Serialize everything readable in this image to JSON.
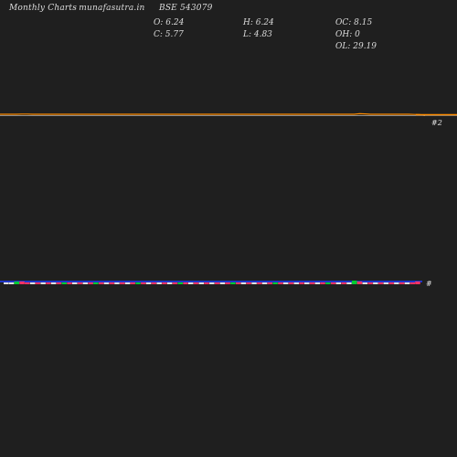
{
  "header": {
    "title": "Monthly Charts",
    "site": "- munafasutra.in",
    "symbol": "BSE 543079"
  },
  "ohlc": {
    "open": "O: 6.24",
    "high": "H: 6.24",
    "oc": "OC: 8.15",
    "close": "C: 5.77",
    "low": "L: 4.83",
    "oh": "OH: 0",
    "ol": "OL: 29.19"
  },
  "colors": {
    "background": "#1f1f1f",
    "price_line": "#ff8c00",
    "volume_axis": "#1e3cff",
    "up": "#00cc33",
    "down": "#ff3366",
    "neutral": "#e0e0e0"
  },
  "chart_data": {
    "type": "line",
    "title": "BSE 543079",
    "price_axis_label": "#2",
    "volume_axis_label": "#",
    "series": [
      {
        "values": [
          6.1,
          6.1,
          6.1,
          6.1,
          6.15,
          6.15,
          6.1,
          6.1,
          6.1,
          6.1,
          6.1,
          6.1,
          6.1,
          6.1,
          6.1,
          6.1,
          6.1,
          6.1,
          6.1,
          6.1,
          6.1,
          6.1,
          6.1,
          6.1,
          6.1,
          6.1,
          6.1,
          6.1,
          6.1,
          6.1,
          6.1,
          6.1,
          6.1,
          6.1,
          6.1,
          6.1,
          6.1,
          6.1,
          6.1,
          6.1,
          6.1,
          6.1,
          6.1,
          6.1,
          6.1,
          6.1,
          6.1,
          6.1,
          6.1,
          6.1,
          6.1,
          6.1,
          6.1,
          6.1,
          6.1,
          6.1,
          6.1,
          6.1,
          6.1,
          6.1,
          6.1,
          6.1,
          6.1,
          6.1,
          6.1,
          6.1,
          6.25,
          6.2,
          6.1,
          6.1,
          6.1,
          6.1,
          6.1,
          6.1,
          6.1,
          6.1,
          6.05,
          6.0,
          5.77
        ]
      }
    ],
    "volume": [
      {
        "v": 2,
        "dir": "n"
      },
      {
        "v": 2,
        "dir": "n"
      },
      {
        "v": 3,
        "dir": "u"
      },
      {
        "v": 3,
        "dir": "d"
      },
      {
        "v": 2,
        "dir": "d"
      },
      {
        "v": 2,
        "dir": "n"
      },
      {
        "v": 2,
        "dir": "d"
      },
      {
        "v": 2,
        "dir": "n"
      },
      {
        "v": 2,
        "dir": "d"
      },
      {
        "v": 2,
        "dir": "n"
      },
      {
        "v": 2,
        "dir": "d"
      },
      {
        "v": 2,
        "dir": "u"
      },
      {
        "v": 2,
        "dir": "d"
      },
      {
        "v": 2,
        "dir": "n"
      },
      {
        "v": 2,
        "dir": "d"
      },
      {
        "v": 2,
        "dir": "n"
      },
      {
        "v": 2,
        "dir": "d"
      },
      {
        "v": 2,
        "dir": "u"
      },
      {
        "v": 2,
        "dir": "d"
      },
      {
        "v": 2,
        "dir": "n"
      },
      {
        "v": 2,
        "dir": "d"
      },
      {
        "v": 2,
        "dir": "n"
      },
      {
        "v": 2,
        "dir": "d"
      },
      {
        "v": 2,
        "dir": "n"
      },
      {
        "v": 2,
        "dir": "d"
      },
      {
        "v": 2,
        "dir": "u"
      },
      {
        "v": 2,
        "dir": "d"
      },
      {
        "v": 2,
        "dir": "n"
      },
      {
        "v": 2,
        "dir": "d"
      },
      {
        "v": 2,
        "dir": "n"
      },
      {
        "v": 2,
        "dir": "d"
      },
      {
        "v": 2,
        "dir": "n"
      },
      {
        "v": 2,
        "dir": "d"
      },
      {
        "v": 2,
        "dir": "u"
      },
      {
        "v": 2,
        "dir": "d"
      },
      {
        "v": 2,
        "dir": "n"
      },
      {
        "v": 2,
        "dir": "d"
      },
      {
        "v": 2,
        "dir": "n"
      },
      {
        "v": 2,
        "dir": "d"
      },
      {
        "v": 2,
        "dir": "n"
      },
      {
        "v": 2,
        "dir": "d"
      },
      {
        "v": 2,
        "dir": "n"
      },
      {
        "v": 2,
        "dir": "d"
      },
      {
        "v": 2,
        "dir": "u"
      },
      {
        "v": 2,
        "dir": "d"
      },
      {
        "v": 2,
        "dir": "n"
      },
      {
        "v": 2,
        "dir": "d"
      },
      {
        "v": 2,
        "dir": "n"
      },
      {
        "v": 2,
        "dir": "d"
      },
      {
        "v": 2,
        "dir": "n"
      },
      {
        "v": 2,
        "dir": "d"
      },
      {
        "v": 2,
        "dir": "u"
      },
      {
        "v": 2,
        "dir": "d"
      },
      {
        "v": 2,
        "dir": "n"
      },
      {
        "v": 2,
        "dir": "d"
      },
      {
        "v": 2,
        "dir": "n"
      },
      {
        "v": 2,
        "dir": "d"
      },
      {
        "v": 2,
        "dir": "n"
      },
      {
        "v": 2,
        "dir": "d"
      },
      {
        "v": 2,
        "dir": "n"
      },
      {
        "v": 2,
        "dir": "d"
      },
      {
        "v": 2,
        "dir": "u"
      },
      {
        "v": 2,
        "dir": "d"
      },
      {
        "v": 2,
        "dir": "n"
      },
      {
        "v": 2,
        "dir": "d"
      },
      {
        "v": 2,
        "dir": "n"
      },
      {
        "v": 4,
        "dir": "u"
      },
      {
        "v": 3,
        "dir": "d"
      },
      {
        "v": 2,
        "dir": "n"
      },
      {
        "v": 2,
        "dir": "d"
      },
      {
        "v": 2,
        "dir": "n"
      },
      {
        "v": 2,
        "dir": "d"
      },
      {
        "v": 2,
        "dir": "n"
      },
      {
        "v": 2,
        "dir": "d"
      },
      {
        "v": 2,
        "dir": "n"
      },
      {
        "v": 2,
        "dir": "d"
      },
      {
        "v": 2,
        "dir": "n"
      },
      {
        "v": 2,
        "dir": "d"
      },
      {
        "v": 3,
        "dir": "d"
      }
    ],
    "grid": false,
    "legend": "none"
  }
}
